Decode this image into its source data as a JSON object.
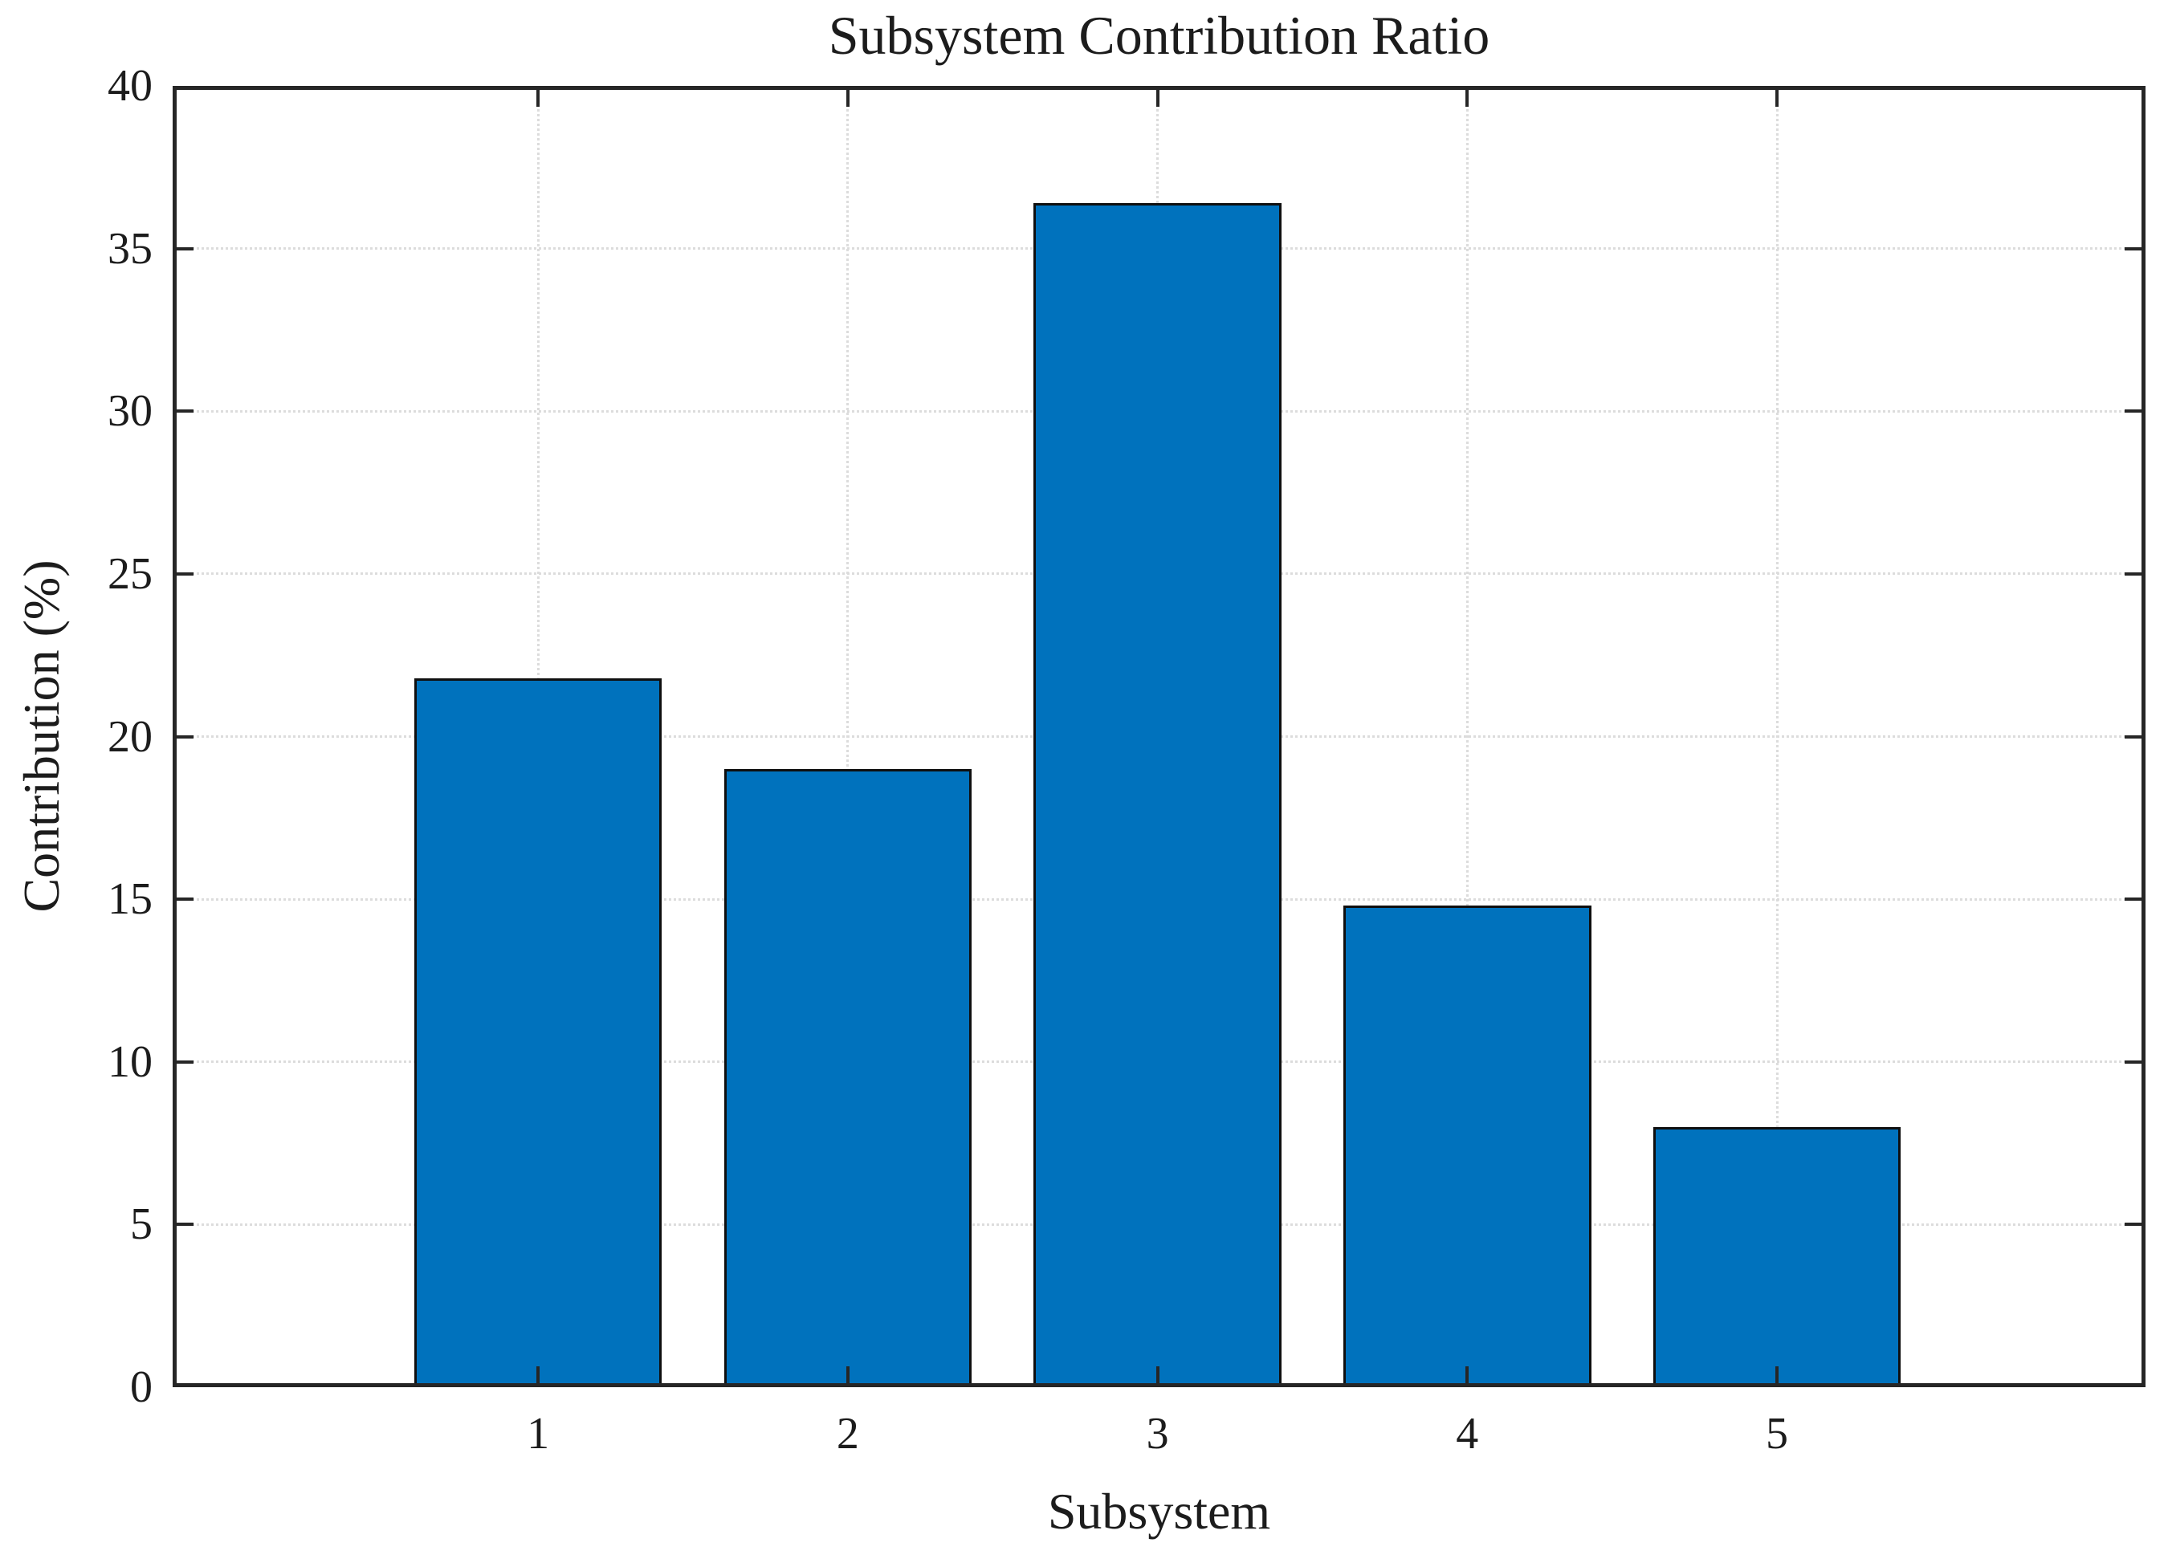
{
  "chart_data": {
    "type": "bar",
    "title": "Subsystem Contribution Ratio",
    "xlabel": "Subsystem",
    "ylabel": "Contribution (%)",
    "categories": [
      "1",
      "2",
      "3",
      "4",
      "5"
    ],
    "values": [
      21.8,
      19.0,
      36.4,
      14.8,
      8.0
    ],
    "ylim": [
      0,
      40
    ],
    "ytick_labels": [
      "0",
      "5",
      "10",
      "15",
      "20",
      "25",
      "30",
      "35",
      "40"
    ],
    "xlim": [
      -0.18,
      6.19
    ],
    "bar_width_units": 0.8,
    "grid": "on",
    "legend": "none",
    "colors": {
      "bar_fill": "#0072BD",
      "bar_edge": "#0f0f0f",
      "grid_line": "#dcdcdc",
      "axis_frame": "#262626",
      "text": "#1c1c1c",
      "background": "#ffffff"
    }
  }
}
